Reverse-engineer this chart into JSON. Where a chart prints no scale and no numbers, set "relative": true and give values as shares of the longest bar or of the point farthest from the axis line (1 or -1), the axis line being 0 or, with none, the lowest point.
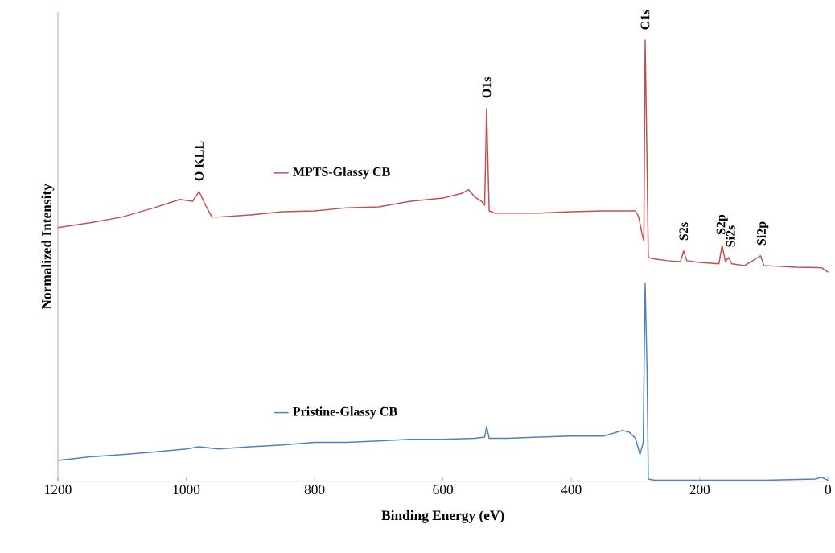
{
  "chart_data": {
    "type": "line",
    "relative": true,
    "xlabel": "Binding Energy (eV)",
    "ylabel": "Normalized Intensity",
    "legend": "left",
    "xlim": [
      1200,
      0
    ],
    "xticks": [
      1200,
      1000,
      800,
      600,
      400,
      200,
      0
    ],
    "tick_labels": "x",
    "series": [
      {
        "name": "MPTS-Glassy CB",
        "color": "#c0504d",
        "x": [
          1200,
          1150,
          1100,
          1050,
          1010,
          990,
          980,
          970,
          960,
          950,
          900,
          850,
          800,
          750,
          700,
          650,
          600,
          570,
          560,
          550,
          540,
          535,
          532,
          528,
          520,
          500,
          450,
          400,
          350,
          300,
          295,
          290,
          287,
          285,
          283,
          280,
          270,
          250,
          230,
          225,
          220,
          200,
          170,
          165,
          160,
          155,
          150,
          130,
          105,
          100,
          50,
          10,
          0
        ],
        "values": [
          0.575,
          0.586,
          0.599,
          0.62,
          0.639,
          0.635,
          0.657,
          0.626,
          0.599,
          0.599,
          0.604,
          0.611,
          0.613,
          0.62,
          0.622,
          0.635,
          0.642,
          0.653,
          0.661,
          0.644,
          0.635,
          0.626,
          0.845,
          0.613,
          0.608,
          0.608,
          0.608,
          0.611,
          0.613,
          0.613,
          0.599,
          0.562,
          0.544,
          1.0,
          0.818,
          0.507,
          0.504,
          0.5,
          0.498,
          0.522,
          0.5,
          0.496,
          0.493,
          0.535,
          0.498,
          0.507,
          0.493,
          0.489,
          0.511,
          0.489,
          0.485,
          0.484,
          0.474
        ]
      },
      {
        "name": "Pristine-Glassy CB",
        "color": "#4f81bd",
        "x": [
          1200,
          1150,
          1100,
          1050,
          1000,
          980,
          950,
          900,
          850,
          800,
          750,
          700,
          650,
          600,
          550,
          535,
          532,
          528,
          500,
          450,
          400,
          350,
          320,
          310,
          300,
          293,
          288,
          285,
          282,
          280,
          270,
          200,
          100,
          20,
          10,
          0
        ],
        "values": [
          0.047,
          0.055,
          0.06,
          0.066,
          0.073,
          0.078,
          0.073,
          0.078,
          0.082,
          0.088,
          0.088,
          0.091,
          0.095,
          0.095,
          0.097,
          0.1,
          0.124,
          0.097,
          0.097,
          0.1,
          0.102,
          0.102,
          0.115,
          0.111,
          0.097,
          0.06,
          0.088,
          0.449,
          0.252,
          0.005,
          0.002,
          0.002,
          0.002,
          0.005,
          0.009,
          0.002
        ]
      }
    ],
    "annotations": [
      {
        "text": "O KLL",
        "x": 980,
        "y": 0.657
      },
      {
        "text": "O1s",
        "x": 532,
        "y": 0.845
      },
      {
        "text": "C1s",
        "x": 285,
        "y": 1.0
      },
      {
        "text": "S2s",
        "x": 225,
        "y": 0.522
      },
      {
        "text": "S2p",
        "x": 165,
        "y": 0.535
      },
      {
        "text": "Si2s",
        "x": 152,
        "y": 0.507
      },
      {
        "text": "Si2p",
        "x": 102,
        "y": 0.511
      }
    ]
  }
}
